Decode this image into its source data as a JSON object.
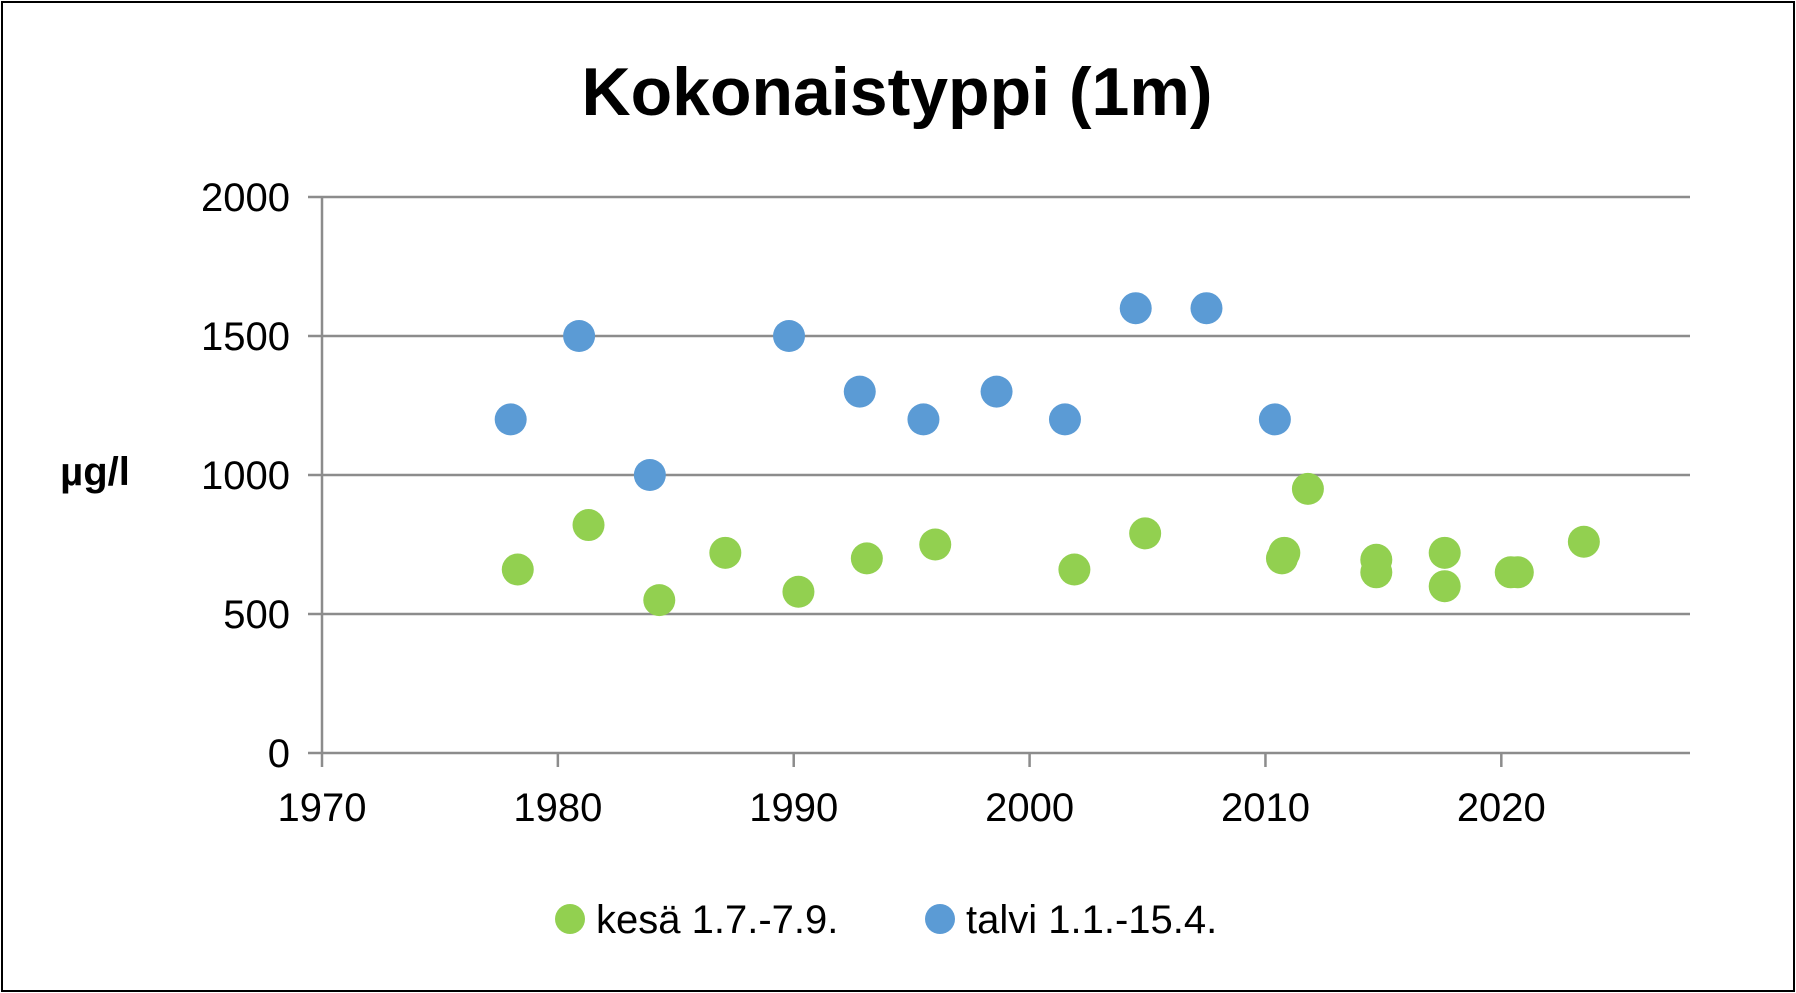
{
  "chart_data": {
    "type": "scatter",
    "title": "Kokonaistyppi (1m)",
    "xlabel": "",
    "ylabel": "µg/l",
    "xlim": [
      1970,
      2028
    ],
    "ylim": [
      0,
      2000
    ],
    "x_ticks": [
      1970,
      1980,
      1990,
      2000,
      2010,
      2020
    ],
    "y_ticks": [
      0,
      500,
      1000,
      1500,
      2000
    ],
    "grid": "horizontal",
    "legend_position": "bottom",
    "series": [
      {
        "name": "kesä 1.7.-7.9.",
        "color": "#92d050",
        "points": [
          {
            "x": 1978.3,
            "y": 660
          },
          {
            "x": 1981.3,
            "y": 820
          },
          {
            "x": 1984.3,
            "y": 550
          },
          {
            "x": 1987.1,
            "y": 720
          },
          {
            "x": 1990.2,
            "y": 580
          },
          {
            "x": 1993.1,
            "y": 700
          },
          {
            "x": 1996.0,
            "y": 750
          },
          {
            "x": 2001.9,
            "y": 660
          },
          {
            "x": 2004.9,
            "y": 790
          },
          {
            "x": 2010.7,
            "y": 700
          },
          {
            "x": 2010.8,
            "y": 720
          },
          {
            "x": 2011.8,
            "y": 950
          },
          {
            "x": 2014.7,
            "y": 650
          },
          {
            "x": 2014.7,
            "y": 695
          },
          {
            "x": 2017.6,
            "y": 600
          },
          {
            "x": 2017.6,
            "y": 720
          },
          {
            "x": 2020.4,
            "y": 650
          },
          {
            "x": 2020.7,
            "y": 650
          },
          {
            "x": 2023.5,
            "y": 760
          }
        ]
      },
      {
        "name": "talvi 1.1.-15.4.",
        "color": "#5b9bd5",
        "points": [
          {
            "x": 1978.0,
            "y": 1200
          },
          {
            "x": 1980.9,
            "y": 1500
          },
          {
            "x": 1983.9,
            "y": 1000
          },
          {
            "x": 1989.8,
            "y": 1500
          },
          {
            "x": 1992.8,
            "y": 1300
          },
          {
            "x": 1995.5,
            "y": 1200
          },
          {
            "x": 1998.6,
            "y": 1300
          },
          {
            "x": 2001.5,
            "y": 1200
          },
          {
            "x": 2004.5,
            "y": 1600
          },
          {
            "x": 2007.5,
            "y": 1600
          },
          {
            "x": 2010.4,
            "y": 1200
          }
        ]
      }
    ]
  }
}
